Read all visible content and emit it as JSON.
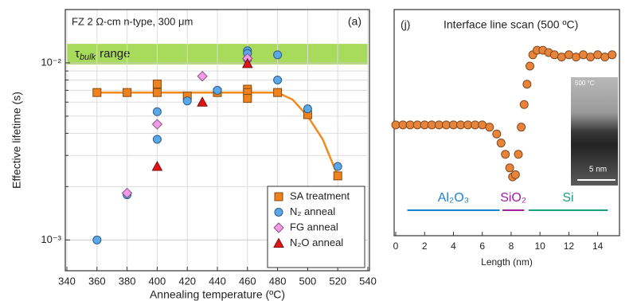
{
  "chart_data": [
    {
      "type": "scatter",
      "panel_label": "(a)",
      "annotation": "FZ 2 Ω-cm n-type, 300 μm",
      "x_label": "Annealing temperature (ºC)",
      "y_label": "Effective lifetime (s)",
      "xlim": [
        340,
        540
      ],
      "xticks": [
        340,
        360,
        380,
        400,
        420,
        440,
        460,
        480,
        500,
        520,
        540
      ],
      "ylim": [
        0.00067,
        0.02
      ],
      "log_y": true,
      "yticks": [
        {
          "value": 0.001,
          "label": "10⁻³"
        },
        {
          "value": 0.01,
          "label": "10⁻²"
        }
      ],
      "yminor_ticks": [
        0.002,
        0.003,
        0.004,
        0.005,
        0.006,
        0.007,
        0.008,
        0.009,
        0.02
      ],
      "grid": true,
      "legend": "lower right",
      "band": {
        "range": [
          0.0098,
          0.0128
        ],
        "color": "#a8da5c",
        "symbol": "τ",
        "subscript": "bulk",
        "text": "range"
      },
      "fit": {
        "color": "#f28a1c",
        "x": [
          360,
          480,
          490,
          500,
          510,
          520
        ],
        "values": [
          0.0068,
          0.0068,
          0.0062,
          0.005,
          0.0037,
          0.0023
        ]
      },
      "series": [
        {
          "name": "SA treatment",
          "marker": "square",
          "color": "#f0821e",
          "x": [
            360,
            380,
            400,
            400,
            420,
            440,
            460,
            460,
            460,
            480,
            500,
            520
          ],
          "values": [
            0.0068,
            0.0068,
            0.0076,
            0.0068,
            0.0065,
            0.0068,
            0.0071,
            0.0068,
            0.0063,
            0.0068,
            0.0051,
            0.0023
          ]
        },
        {
          "name": "N₂ anneal",
          "marker": "circle",
          "color": "#5aa8ea",
          "x": [
            360,
            380,
            400,
            400,
            420,
            440,
            460,
            460,
            460,
            480,
            480,
            500,
            520
          ],
          "values": [
            0.001,
            0.0018,
            0.0053,
            0.0037,
            0.0061,
            0.007,
            0.0117,
            0.0113,
            0.0105,
            0.0111,
            0.008,
            0.0055,
            0.0026
          ]
        },
        {
          "name": "FG anneal",
          "marker": "diamond",
          "color": "#f49be8",
          "x": [
            380,
            400,
            430,
            460
          ],
          "values": [
            0.00184,
            0.0045,
            0.0084,
            0.0106
          ]
        },
        {
          "name": "N₂O anneal",
          "marker": "triangle",
          "color": "#e01414",
          "x": [
            400,
            430,
            460
          ],
          "values": [
            0.0026,
            0.006,
            0.0099
          ]
        }
      ]
    },
    {
      "type": "scatter",
      "panel_label": "(j)",
      "title": "Interface line scan (500 ºC)",
      "x_label": "Length (nm)",
      "xlim": [
        0,
        15.4
      ],
      "xticks": [
        0,
        2,
        4,
        6,
        8,
        10,
        12,
        14
      ],
      "ylim": [
        0,
        1
      ],
      "series": [
        {
          "marker": "circle",
          "color": "#e8843a",
          "x": [
            0,
            0.5,
            1,
            1.5,
            2,
            2.5,
            3,
            3.5,
            4,
            4.5,
            5,
            5.5,
            6,
            6.5,
            7,
            7.3,
            7.6,
            7.9,
            8.1,
            8.3,
            8.5,
            8.7,
            8.9,
            9.1,
            9.3,
            9.5,
            9.8,
            10.2,
            10.6,
            11,
            11.5,
            12,
            12.5,
            13,
            13.5,
            14,
            14.5,
            15
          ],
          "values": [
            0.49,
            0.49,
            0.49,
            0.49,
            0.49,
            0.49,
            0.49,
            0.49,
            0.49,
            0.49,
            0.49,
            0.49,
            0.49,
            0.48,
            0.45,
            0.41,
            0.36,
            0.3,
            0.26,
            0.27,
            0.36,
            0.48,
            0.58,
            0.67,
            0.75,
            0.8,
            0.82,
            0.82,
            0.81,
            0.8,
            0.79,
            0.8,
            0.79,
            0.8,
            0.79,
            0.8,
            0.79,
            0.8
          ]
        }
      ],
      "regions": [
        {
          "label": "Al₂O₃",
          "start": 0.8,
          "end": 7.2,
          "color": "#1f7fd0"
        },
        {
          "label": "SiO₂",
          "start": 7.4,
          "end": 8.9,
          "color": "#a020a0"
        },
        {
          "label": "Si",
          "start": 9.2,
          "end": 14.7,
          "color": "#1aa080"
        }
      ],
      "inset": {
        "label": "500 °C",
        "scale_label": "5 nm"
      }
    }
  ]
}
